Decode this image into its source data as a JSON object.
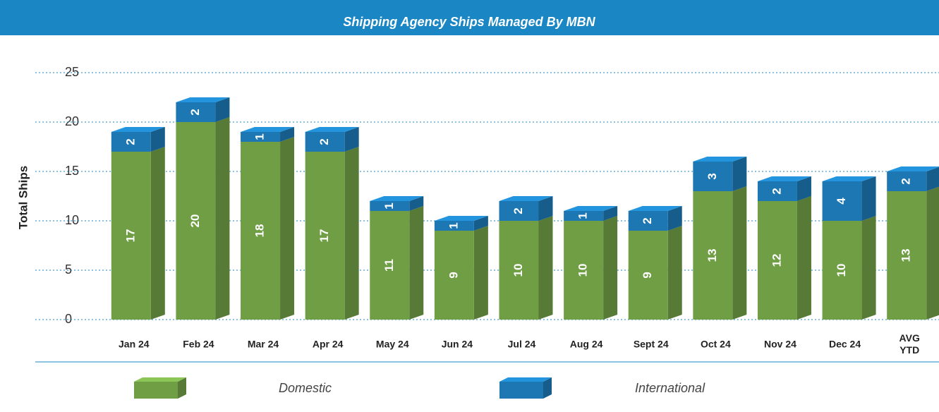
{
  "chart_data": {
    "type": "bar3d_stacked",
    "title": "Shipping Agency Ships Managed By MBN",
    "ylabel": "Total Ships",
    "categories": [
      "Jan 24",
      "Feb 24",
      "Mar 24",
      "Apr 24",
      "May 24",
      "Jun 24",
      "Jul 24",
      "Aug 24",
      "Sept 24",
      "Oct 24",
      "Nov 24",
      "Dec 24",
      "AVG YTD"
    ],
    "series": [
      {
        "name": "Domestic",
        "color": "#6f9e45",
        "values": [
          17,
          20,
          18,
          17,
          11,
          9,
          10,
          10,
          9,
          13,
          12,
          10,
          13
        ]
      },
      {
        "name": "International",
        "color": "#1c77b2",
        "values": [
          2,
          2,
          1,
          2,
          1,
          1,
          2,
          1,
          2,
          3,
          2,
          4,
          2
        ]
      }
    ],
    "ylim": [
      0,
      25
    ],
    "yticks": [
      0,
      5,
      10,
      15,
      20,
      25
    ],
    "grid": true
  }
}
